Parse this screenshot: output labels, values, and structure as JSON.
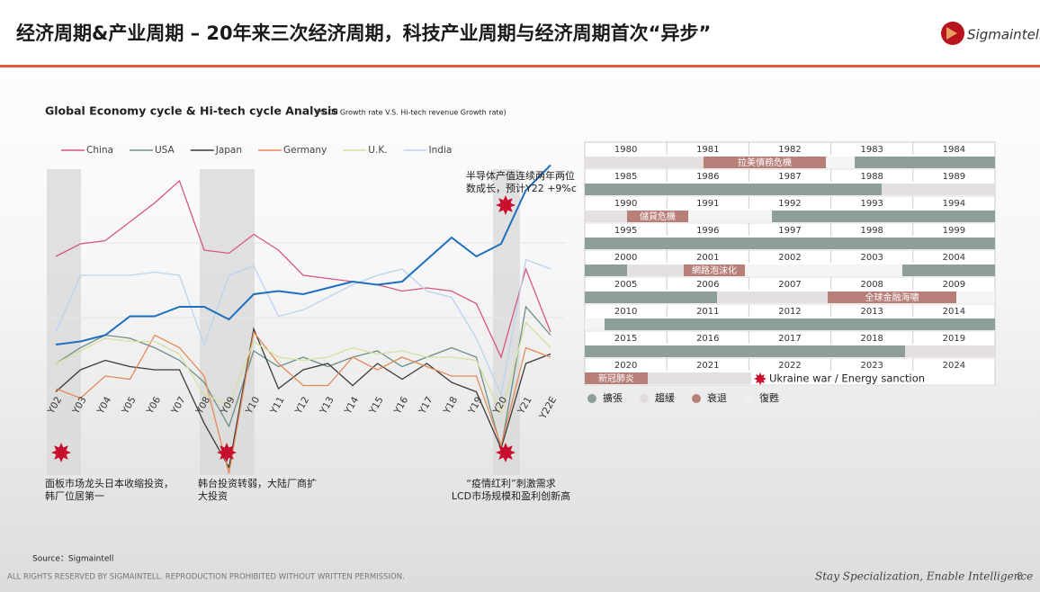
{
  "header": {
    "title": "经济周期&产业周期 – 20年来三次经济周期，科技产业周期与经济周期首次“异步”",
    "logo": "Sigmaintell"
  },
  "chart_data": {
    "type": "line",
    "title": "Global Economy cycle & Hi-tech cycle Analysis",
    "subtitle": "(*GDP Growth rate V.S. Hi-tech revenue Growth rate)",
    "categories": [
      "Y02",
      "Y03",
      "Y04",
      "Y05",
      "Y06",
      "Y07",
      "Y08",
      "Y09",
      "Y10",
      "Y11",
      "Y12",
      "Y13",
      "Y14",
      "Y15",
      "Y16",
      "Y17",
      "Y18",
      "Y19",
      "Y20",
      "Y21",
      "Y22E"
    ],
    "ylim": [
      0,
      100
    ],
    "series": [
      {
        "name": "China",
        "color": "#d6577a",
        "values": [
          70,
          74,
          75,
          81,
          87,
          94,
          72,
          71,
          77,
          72,
          64,
          63,
          62,
          61,
          59,
          60,
          59,
          55,
          38,
          66,
          46
        ]
      },
      {
        "name": "USA",
        "color": "#6b8f8a",
        "values": [
          36,
          41,
          45,
          44,
          41,
          37,
          30,
          16,
          40,
          35,
          38,
          35,
          38,
          40,
          35,
          38,
          41,
          38,
          9,
          54,
          45
        ]
      },
      {
        "name": "Japan",
        "color": "#3a3a3a",
        "values": [
          27,
          34,
          37,
          35,
          34,
          34,
          17,
          3,
          47,
          28,
          34,
          36,
          29,
          36,
          31,
          36,
          30,
          27,
          9,
          36,
          39
        ]
      },
      {
        "name": "Germany",
        "color": "#e58a5a",
        "values": [
          28,
          25,
          32,
          31,
          45,
          41,
          32,
          1,
          46,
          36,
          29,
          29,
          38,
          34,
          38,
          35,
          32,
          32,
          10,
          41,
          38
        ]
      },
      {
        "name": "U.K.",
        "color": "#d5e0a0",
        "values": [
          36,
          40,
          44,
          43,
          43,
          39,
          26,
          23,
          43,
          38,
          37,
          38,
          41,
          39,
          40,
          38,
          38,
          37,
          20,
          49,
          41
        ]
      },
      {
        "name": "India",
        "color": "#bcd3ee",
        "values": [
          46,
          64,
          64,
          64,
          65,
          64,
          42,
          64,
          67,
          51,
          53,
          57,
          61,
          64,
          66,
          59,
          57,
          44,
          26,
          69,
          66
        ]
      },
      {
        "color": "#1f6fbf",
        "values": [
          42,
          43,
          45,
          51,
          51,
          54,
          54,
          50,
          58,
          59,
          58,
          60,
          62,
          61,
          62,
          69,
          76,
          70,
          74,
          91,
          99
        ]
      }
    ],
    "annotations": [
      [
        "半导体产值连续两年两位",
        "数成长，预计Y22 +9%c"
      ],
      [
        "面板市场龙头日本收缩投资，",
        "韩厂位居第一"
      ],
      [
        "韩台投资转弱，大陆厂商扩",
        "大投资"
      ],
      [
        "“疫情红利”刺激需求",
        "LCD市场规模和盈利创新高"
      ]
    ]
  },
  "timeline": {
    "rows": [
      [
        1980,
        1981,
        1982,
        1983,
        1984
      ],
      [
        1985,
        1986,
        1987,
        1988,
        1989
      ],
      [
        1990,
        1991,
        1992,
        1993,
        1994
      ],
      [
        1995,
        1996,
        1997,
        1998,
        1999
      ],
      [
        2000,
        2001,
        2002,
        2003,
        2004
      ],
      [
        2005,
        2006,
        2007,
        2008,
        2009
      ],
      [
        2010,
        2011,
        2012,
        2013,
        2014
      ],
      [
        2015,
        2016,
        2017,
        2018,
        2019
      ],
      [
        2020,
        2021,
        2022,
        2023,
        2024
      ]
    ],
    "events": [
      "拉美債務危機",
      "儲貸危機",
      "網路泡沫化",
      "全球金融海嘯",
      "新冠肺炎"
    ],
    "note": "Ukraine war / Energy sanction",
    "legend": [
      "擴張",
      "趨緩",
      "衰退",
      "復甦"
    ]
  },
  "source": "Source：Sigmaintell",
  "footer": {
    "rights": "ALL RIGHTS RESERVED BY SIGMAINTELL. REPRODUCTION PROHIBITED WITHOUT WRITTEN PERMISSION.",
    "slogan": "Stay Specialization, Enable Intelligence",
    "page": "8"
  }
}
